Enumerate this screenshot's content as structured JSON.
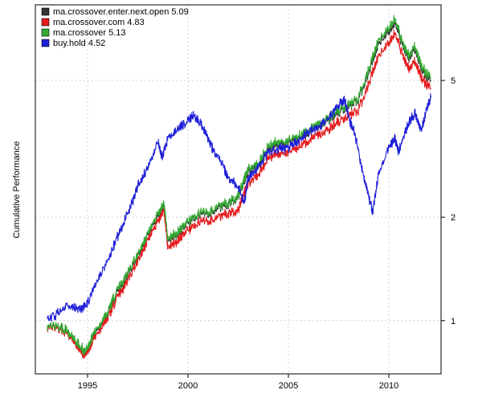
{
  "chart_data": {
    "type": "line",
    "title": "",
    "xlabel": "",
    "ylabel": "Cumulative Performance",
    "y_scale": "log",
    "xlim": [
      1992.4,
      2012.6
    ],
    "ylim": [
      0.7,
      8.3
    ],
    "x_ticks": [
      1995,
      2000,
      2005,
      2010
    ],
    "x_tick_labels": [
      "1995",
      "2000",
      "2005",
      "2010"
    ],
    "y_ticks": [
      1,
      2,
      5
    ],
    "y_tick_labels": [
      "1",
      "2",
      "5"
    ],
    "y_axis_side": "right",
    "grid": true,
    "legend_position": "top-left",
    "series": [
      {
        "name": "ma.crossover.enter.next.open 5.09",
        "color": "#333333",
        "x": [
          1993.0,
          1993.5,
          1994.0,
          1994.5,
          1994.9,
          1995.3,
          1996.0,
          1996.5,
          1997.0,
          1997.5,
          1998.0,
          1998.5,
          1998.8,
          1999.0,
          1999.5,
          2000.0,
          2000.5,
          2001.0,
          2001.5,
          2002.0,
          2002.5,
          2002.8,
          2003.0,
          2003.5,
          2004.0,
          2004.5,
          2005.0,
          2005.5,
          2006.0,
          2006.5,
          2007.0,
          2007.5,
          2008.0,
          2008.5,
          2009.0,
          2009.5,
          2010.0,
          2010.3,
          2010.7,
          2011.0,
          2011.3,
          2011.7,
          2012.1
        ],
        "values": [
          0.97,
          0.96,
          0.93,
          0.85,
          0.8,
          0.9,
          1.05,
          1.22,
          1.35,
          1.55,
          1.78,
          2.02,
          2.18,
          1.7,
          1.8,
          1.92,
          2.02,
          2.05,
          2.12,
          2.18,
          2.3,
          2.55,
          2.7,
          2.82,
          3.2,
          3.25,
          3.3,
          3.4,
          3.55,
          3.65,
          3.85,
          4.05,
          4.2,
          4.4,
          5.3,
          6.4,
          6.9,
          7.4,
          6.3,
          5.8,
          6.2,
          5.3,
          5.0
        ]
      },
      {
        "name": "ma.crossover.com 4.83",
        "color": "#e41a1c",
        "x": [
          1993.0,
          1993.5,
          1994.0,
          1994.5,
          1994.9,
          1995.3,
          1996.0,
          1996.5,
          1997.0,
          1997.5,
          1998.0,
          1998.5,
          1998.8,
          1999.0,
          1999.5,
          2000.0,
          2000.5,
          2001.0,
          2001.5,
          2002.0,
          2002.5,
          2002.8,
          2003.0,
          2003.5,
          2004.0,
          2004.5,
          2005.0,
          2005.5,
          2006.0,
          2006.5,
          2007.0,
          2007.5,
          2008.0,
          2008.5,
          2009.0,
          2009.5,
          2010.0,
          2010.3,
          2010.7,
          2011.0,
          2011.3,
          2011.7,
          2012.1
        ],
        "values": [
          0.96,
          0.95,
          0.92,
          0.84,
          0.79,
          0.88,
          1.02,
          1.18,
          1.3,
          1.5,
          1.72,
          1.95,
          2.1,
          1.62,
          1.72,
          1.83,
          1.92,
          1.95,
          2.0,
          2.05,
          2.1,
          2.35,
          2.5,
          2.65,
          3.0,
          3.05,
          3.1,
          3.2,
          3.35,
          3.45,
          3.6,
          3.8,
          3.95,
          4.1,
          4.9,
          5.9,
          6.4,
          6.9,
          5.9,
          5.4,
          5.7,
          5.0,
          4.75
        ]
      },
      {
        "name": "ma.crossover 5.13",
        "color": "#33aa33",
        "x": [
          1993.0,
          1993.5,
          1994.0,
          1994.5,
          1994.9,
          1995.3,
          1996.0,
          1996.5,
          1997.0,
          1997.5,
          1998.0,
          1998.5,
          1998.8,
          1999.0,
          1999.5,
          2000.0,
          2000.5,
          2001.0,
          2001.5,
          2002.0,
          2002.5,
          2002.8,
          2003.0,
          2003.5,
          2004.0,
          2004.5,
          2005.0,
          2005.5,
          2006.0,
          2006.5,
          2007.0,
          2007.5,
          2008.0,
          2008.5,
          2009.0,
          2009.5,
          2010.0,
          2010.3,
          2010.7,
          2011.0,
          2011.3,
          2011.7,
          2012.1
        ],
        "values": [
          0.97,
          0.96,
          0.93,
          0.86,
          0.81,
          0.91,
          1.06,
          1.24,
          1.37,
          1.57,
          1.8,
          2.05,
          2.2,
          1.72,
          1.82,
          1.94,
          2.04,
          2.07,
          2.15,
          2.2,
          2.32,
          2.58,
          2.75,
          2.85,
          3.25,
          3.3,
          3.35,
          3.45,
          3.6,
          3.7,
          3.9,
          4.1,
          4.25,
          4.45,
          5.4,
          6.55,
          7.05,
          7.6,
          6.4,
          5.9,
          6.3,
          5.4,
          5.1
        ]
      },
      {
        "name": "buy.hold 4.52",
        "color": "#1f1fd8",
        "x": [
          1993.0,
          1993.5,
          1994.0,
          1994.5,
          1994.9,
          1995.5,
          1996.0,
          1996.5,
          1997.0,
          1997.5,
          1998.0,
          1998.5,
          1998.7,
          1999.0,
          1999.5,
          2000.0,
          2000.3,
          2000.7,
          2001.0,
          2001.3,
          2001.7,
          2002.0,
          2002.5,
          2002.8,
          2003.0,
          2003.5,
          2004.0,
          2004.5,
          2005.0,
          2005.5,
          2006.0,
          2006.5,
          2007.0,
          2007.5,
          2007.8,
          2008.0,
          2008.3,
          2008.7,
          2009.0,
          2009.2,
          2009.5,
          2010.0,
          2010.3,
          2010.5,
          2011.0,
          2011.3,
          2011.6,
          2011.9,
          2012.1
        ],
        "values": [
          1.01,
          1.05,
          1.1,
          1.08,
          1.1,
          1.3,
          1.5,
          1.75,
          2.05,
          2.45,
          2.8,
          3.3,
          3.0,
          3.4,
          3.6,
          3.85,
          3.95,
          3.7,
          3.4,
          3.1,
          2.9,
          2.6,
          2.45,
          2.2,
          2.6,
          2.8,
          3.1,
          3.15,
          3.2,
          3.35,
          3.55,
          3.65,
          3.9,
          4.25,
          4.4,
          3.9,
          3.5,
          2.7,
          2.3,
          2.05,
          2.7,
          3.2,
          3.4,
          3.1,
          3.8,
          4.0,
          3.6,
          4.1,
          4.52
        ]
      }
    ]
  }
}
